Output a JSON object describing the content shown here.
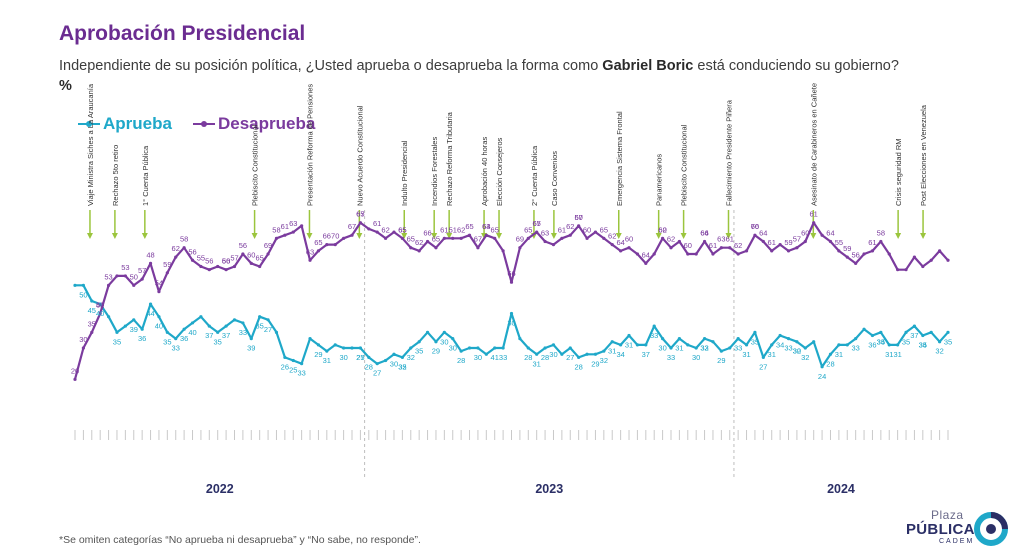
{
  "title": "Aprobación Presidencial",
  "subtitle_pre": "Independiente de su posición política, ¿Usted aprueba o desaprueba la forma como ",
  "subtitle_bold": "Gabriel Boric",
  "subtitle_post": " está conduciendo su gobierno? ",
  "subtitle_pct": "%",
  "footnote": "*Se omiten categorías “No aprueba ni desaprueba” y “No sabe, no responde”.",
  "logo": {
    "line1": "Plaza",
    "line2": "PÚBLICA",
    "line3": "CADEM"
  },
  "colors": {
    "aprueba": "#1fa8c9",
    "desaprueba": "#7b3b9e",
    "events": "#9bc53d",
    "title": "#6b2c91"
  },
  "chart_data": {
    "type": "line",
    "years": [
      "2022",
      "2023",
      "2024"
    ],
    "ylim": [
      15,
      75
    ],
    "series": [
      {
        "name": "Aprueba",
        "values": [
          50,
          50,
          45,
          44,
          40,
          35,
          37,
          39,
          36,
          44,
          40,
          35,
          33,
          36,
          38,
          40,
          37,
          35,
          37,
          39,
          38,
          33,
          40,
          39,
          35,
          27,
          26,
          25,
          33,
          31,
          29,
          31,
          30,
          30,
          30,
          27,
          25,
          26,
          28,
          27,
          30,
          32,
          35,
          32,
          35,
          33,
          29,
          30,
          30,
          28,
          30,
          30,
          41,
          33,
          30,
          28,
          30,
          31,
          28,
          30,
          27,
          28,
          28,
          29,
          32,
          31,
          34,
          31,
          31,
          37,
          33,
          30,
          33,
          31,
          30,
          33,
          32,
          29,
          30,
          33,
          31,
          35,
          27,
          31,
          34,
          33,
          32,
          30,
          32,
          24,
          28,
          31,
          31,
          33,
          36,
          34,
          35,
          31,
          31,
          35,
          37,
          34,
          35,
          32,
          35
        ]
      },
      {
        "name": "Desaprueba",
        "values": [
          20,
          30,
          35,
          41,
          50,
          53,
          53,
          50,
          52,
          57,
          48,
          54,
          59,
          62,
          58,
          56,
          55,
          56,
          55,
          56,
          60,
          57,
          56,
          60,
          65,
          66,
          67,
          69,
          58,
          61,
          63,
          63,
          65,
          66,
          70,
          68,
          67,
          65,
          67,
          65,
          62,
          61,
          64,
          62,
          65,
          65,
          65,
          66,
          62,
          66,
          65,
          61,
          51,
          62,
          65,
          67,
          64,
          63,
          65,
          66,
          69,
          65,
          67,
          65,
          63,
          61,
          62,
          60,
          57,
          60,
          65,
          62,
          64,
          60,
          60,
          64,
          60,
          62,
          62,
          60,
          61,
          66,
          64,
          61,
          63,
          61,
          62,
          64,
          70,
          66,
          64,
          61,
          59,
          57,
          60,
          61,
          64,
          60,
          55,
          55,
          59,
          56,
          58,
          61,
          58
        ]
      }
    ],
    "labels": {
      "aprueba": [
        [
          0,
          null
        ],
        [
          1,
          50
        ],
        [
          2,
          45
        ],
        [
          3,
          null
        ],
        [
          4,
          40
        ],
        [
          6,
          35
        ],
        [
          8,
          39
        ],
        [
          10,
          36
        ],
        [
          11,
          44
        ],
        [
          12,
          40
        ],
        [
          13,
          35
        ],
        [
          14,
          33
        ],
        [
          15,
          36
        ],
        [
          17,
          40
        ],
        [
          19,
          37
        ],
        [
          20,
          35
        ],
        [
          22,
          37
        ],
        [
          24,
          33
        ],
        [
          25,
          39
        ],
        [
          26,
          35
        ],
        [
          28,
          27
        ],
        [
          30,
          26
        ],
        [
          31,
          25
        ],
        [
          32,
          33
        ],
        [
          34,
          29
        ],
        [
          36,
          31
        ],
        [
          38,
          30
        ],
        [
          40,
          27
        ],
        [
          41,
          25
        ],
        [
          42,
          28
        ],
        [
          43,
          27
        ],
        [
          45,
          30
        ],
        [
          46,
          32
        ],
        [
          47,
          35
        ],
        [
          48,
          32
        ],
        [
          49,
          35
        ],
        [
          51,
          29
        ],
        [
          53,
          30
        ],
        [
          54,
          30
        ],
        [
          55,
          28
        ],
        [
          57,
          30
        ],
        [
          60,
          41
        ],
        [
          61,
          33
        ],
        [
          62,
          30
        ],
        [
          64,
          28
        ],
        [
          66,
          31
        ],
        [
          67,
          28
        ],
        [
          68,
          30
        ],
        [
          70,
          27
        ],
        [
          72,
          28
        ],
        [
          74,
          29
        ],
        [
          75,
          32
        ],
        [
          76,
          31
        ],
        [
          77,
          34
        ],
        [
          79,
          31
        ],
        [
          81,
          37
        ],
        [
          82,
          33
        ],
        [
          83,
          30
        ],
        [
          85,
          33
        ],
        [
          86,
          31
        ],
        [
          88,
          30
        ],
        [
          89,
          33
        ],
        [
          90,
          32
        ],
        [
          92,
          29
        ],
        [
          94,
          33
        ],
        [
          95,
          31
        ],
        [
          96,
          35
        ],
        [
          98,
          27
        ],
        [
          99,
          31
        ],
        [
          100,
          34
        ],
        [
          101,
          33
        ],
        [
          102,
          32
        ],
        [
          103,
          30
        ],
        [
          104,
          32
        ],
        [
          106,
          24
        ],
        [
          107,
          28
        ],
        [
          109,
          31
        ],
        [
          111,
          33
        ],
        [
          113,
          36
        ],
        [
          114,
          34
        ],
        [
          115,
          35
        ],
        [
          116,
          31
        ],
        [
          117,
          31
        ],
        [
          118,
          35
        ],
        [
          119,
          37
        ],
        [
          120,
          34
        ],
        [
          121,
          35
        ],
        [
          123,
          32
        ],
        [
          124,
          35
        ]
      ],
      "desaprueba": [
        [
          0,
          20
        ],
        [
          1,
          30
        ],
        [
          2,
          35
        ],
        [
          3,
          41
        ],
        [
          4,
          50
        ],
        [
          5,
          53
        ],
        [
          7,
          53
        ],
        [
          8,
          50
        ],
        [
          10,
          57
        ],
        [
          11,
          48
        ],
        [
          12,
          54
        ],
        [
          13,
          59
        ],
        [
          14,
          62
        ],
        [
          15,
          58
        ],
        [
          17,
          56
        ],
        [
          18,
          55
        ],
        [
          19,
          56
        ],
        [
          21,
          56
        ],
        [
          22,
          60
        ],
        [
          23,
          57
        ],
        [
          24,
          56
        ],
        [
          25,
          60
        ],
        [
          26,
          65
        ],
        [
          28,
          69
        ],
        [
          29,
          58
        ],
        [
          30,
          61
        ],
        [
          31,
          63
        ],
        [
          33,
          63
        ],
        [
          34,
          65
        ],
        [
          36,
          66
        ],
        [
          37,
          70
        ],
        [
          39,
          67
        ],
        [
          40,
          67
        ],
        [
          41,
          65
        ],
        [
          43,
          61
        ],
        [
          44,
          62
        ],
        [
          46,
          65
        ],
        [
          47,
          65
        ],
        [
          48,
          65
        ],
        [
          49,
          62
        ],
        [
          50,
          66
        ],
        [
          51,
          65
        ],
        [
          53,
          61
        ],
        [
          54,
          51
        ],
        [
          55,
          62
        ],
        [
          56,
          65
        ],
        [
          57,
          67
        ],
        [
          58,
          64
        ],
        [
          59,
          63
        ],
        [
          60,
          65
        ],
        [
          62,
          66
        ],
        [
          63,
          69
        ],
        [
          64,
          65
        ],
        [
          65,
          67
        ],
        [
          66,
          65
        ],
        [
          67,
          63
        ],
        [
          69,
          61
        ],
        [
          70,
          62
        ],
        [
          71,
          60
        ],
        [
          72,
          57
        ],
        [
          73,
          60
        ],
        [
          75,
          65
        ],
        [
          76,
          62
        ],
        [
          77,
          64
        ],
        [
          79,
          60
        ],
        [
          81,
          64
        ],
        [
          83,
          60
        ],
        [
          84,
          62
        ],
        [
          85,
          62
        ],
        [
          87,
          60
        ],
        [
          89,
          66
        ],
        [
          90,
          64
        ],
        [
          91,
          61
        ],
        [
          92,
          63
        ],
        [
          93,
          61
        ],
        [
          94,
          62
        ],
        [
          96,
          70
        ],
        [
          97,
          66
        ],
        [
          98,
          64
        ],
        [
          99,
          61
        ],
        [
          101,
          59
        ],
        [
          102,
          57
        ],
        [
          104,
          60
        ],
        [
          105,
          61
        ],
        [
          107,
          64
        ],
        [
          108,
          55
        ],
        [
          110,
          59
        ],
        [
          111,
          56
        ],
        [
          113,
          61
        ],
        [
          114,
          58
        ]
      ]
    },
    "events": [
      "Viaje Ministra Siches a La Araucanía",
      "Rechazo 5to retiro",
      "1° Cuenta Pública",
      "Plebiscito Constitucional",
      "Presentación Reforma de Pensiones",
      "Nuevo Acuerdo Constitucional",
      "Indulto Presidencial",
      "Incendios Forestales",
      "Rechazo Reforma Tributaria",
      "Aprobación 40 horas",
      "Elección Consejeros",
      "2° Cuenta Pública",
      "Caso Convenios",
      "Emergencia Sistema Frontal",
      "Panamericanos",
      "Plebiscito Constitucional",
      "Fallecimiento Presidente Piñera",
      "Asesinato de Carabineros en Cañete",
      "Crisis seguridad RM",
      "Post Elecciones en Venezuela"
    ]
  }
}
